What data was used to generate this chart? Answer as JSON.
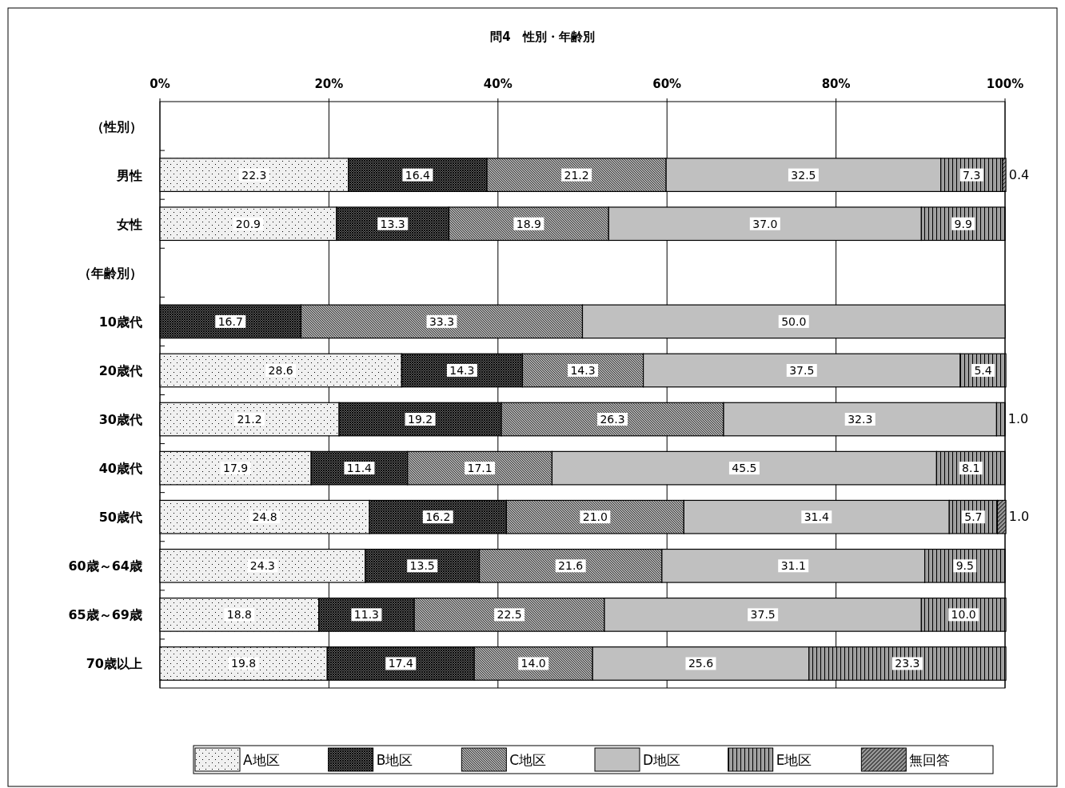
{
  "chart_data": {
    "type": "bar",
    "orientation": "horizontal",
    "stacked": true,
    "title": "問4　性別・年齢別",
    "categories": [
      "（性別）",
      "男性",
      "女性",
      "（年齢別）",
      "10歳代",
      "20歳代",
      "30歳代",
      "40歳代",
      "50歳代",
      "60歳～64歳",
      "65歳～69歳",
      "70歳以上"
    ],
    "xlim": [
      0,
      100
    ],
    "xticks": [
      {
        "value": 0,
        "label": "0%"
      },
      {
        "value": 20,
        "label": "20%"
      },
      {
        "value": 40,
        "label": "40%"
      },
      {
        "value": 60,
        "label": "60%"
      },
      {
        "value": 80,
        "label": "80%"
      },
      {
        "value": 100,
        "label": "100%"
      }
    ],
    "grid": "x",
    "legend": "bottom",
    "series": [
      {
        "name": "A地区",
        "color": "#f0f0f0",
        "values": [
          null,
          22.3,
          20.9,
          null,
          null,
          28.6,
          21.2,
          17.9,
          24.8,
          24.3,
          18.8,
          19.8
        ],
        "value_labels": [
          null,
          "22.3",
          "20.9",
          null,
          null,
          "28.6",
          "21.2",
          "17.9",
          "24.8",
          "24.3",
          "18.8",
          "19.8"
        ]
      },
      {
        "name": "B地区",
        "color": "#606060",
        "values": [
          null,
          16.4,
          13.3,
          null,
          16.7,
          14.3,
          19.2,
          11.4,
          16.2,
          13.5,
          11.3,
          17.4
        ],
        "value_labels": [
          null,
          "16.4",
          "13.3",
          null,
          "16.7",
          "14.3",
          "19.2",
          "11.4",
          "16.2",
          "13.5",
          "11.3",
          "17.4"
        ]
      },
      {
        "name": "C地区",
        "color": "#b0b0b0",
        "values": [
          null,
          21.2,
          18.9,
          null,
          33.3,
          14.3,
          26.3,
          17.1,
          21.0,
          21.6,
          22.5,
          14.0
        ],
        "value_labels": [
          null,
          "21.2",
          "18.9",
          null,
          "33.3",
          "14.3",
          "26.3",
          "17.1",
          "21.0",
          "21.6",
          "22.5",
          "14.0"
        ]
      },
      {
        "name": "D地区",
        "color": "#c0c0c0",
        "values": [
          null,
          32.5,
          37.0,
          null,
          50.0,
          37.5,
          32.3,
          45.5,
          31.4,
          31.1,
          37.5,
          25.6
        ],
        "value_labels": [
          null,
          "32.5",
          "37.0",
          null,
          "50.0",
          "37.5",
          "32.3",
          "45.5",
          "31.4",
          "31.1",
          "37.5",
          "25.6"
        ]
      },
      {
        "name": "E地区",
        "color": "#a0a0a0",
        "values": [
          null,
          7.3,
          9.9,
          null,
          null,
          5.4,
          1.0,
          8.1,
          5.7,
          9.5,
          10.0,
          23.3
        ],
        "value_labels": [
          null,
          "7.3",
          "9.9",
          null,
          null,
          "5.4",
          "1.0",
          "8.1",
          "5.7",
          "9.5",
          "10.0",
          "23.3"
        ]
      },
      {
        "name": "無回答",
        "color": "#909090",
        "values": [
          null,
          0.4,
          null,
          null,
          null,
          null,
          null,
          null,
          1.0,
          null,
          null,
          null
        ],
        "value_labels": [
          null,
          "0.4",
          null,
          null,
          null,
          null,
          null,
          null,
          "1.0",
          null,
          null,
          null
        ]
      }
    ]
  }
}
